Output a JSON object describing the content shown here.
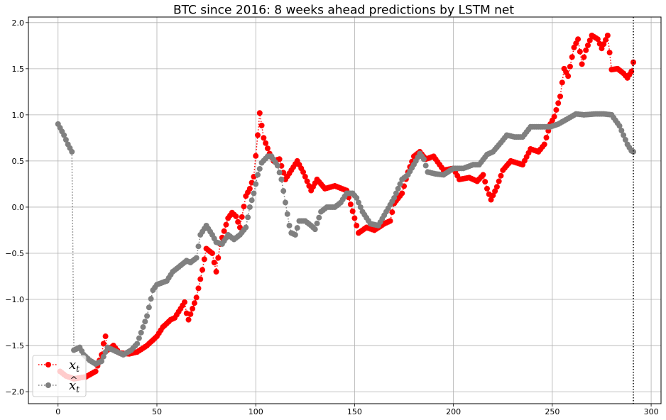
{
  "chart_data": {
    "type": "line",
    "title": "BTC since 2016: 8 weeks ahead predictions by LSTM net",
    "xlabel": "",
    "ylabel": "",
    "xlim": [
      -15,
      305
    ],
    "ylim": [
      -2.13,
      2.06
    ],
    "xticks": [
      0,
      50,
      100,
      150,
      200,
      250,
      300
    ],
    "xtick_labels": [
      "0",
      "50",
      "100",
      "150",
      "200",
      "250",
      "300"
    ],
    "yticks": [
      -2.0,
      -1.5,
      -1.0,
      -0.5,
      0.0,
      0.5,
      1.0,
      1.5,
      2.0
    ],
    "ytick_labels": [
      "−2.0",
      "−1.5",
      "−1.0",
      "−0.5",
      "0.0",
      "0.5",
      "1.0",
      "1.5",
      "2.0"
    ],
    "grid": true,
    "legend_position": "bottom-left",
    "vline": {
      "x": 291,
      "style": "dotted",
      "color": "#000000"
    },
    "series": [
      {
        "name": "x_t",
        "color": "#ff0000",
        "linestyle": "dotted",
        "marker": "circle",
        "knots": [
          [
            1,
            -1.78
          ],
          [
            4,
            -1.83
          ],
          [
            8,
            -1.86
          ],
          [
            14,
            -1.84
          ],
          [
            19,
            -1.78
          ],
          [
            22,
            -1.6
          ],
          [
            23,
            -1.48
          ],
          [
            24,
            -1.4
          ],
          [
            25,
            -1.55
          ],
          [
            28,
            -1.5
          ],
          [
            31,
            -1.58
          ],
          [
            36,
            -1.59
          ],
          [
            40,
            -1.57
          ],
          [
            45,
            -1.5
          ],
          [
            50,
            -1.4
          ],
          [
            53,
            -1.3
          ],
          [
            57,
            -1.22
          ],
          [
            59,
            -1.2
          ],
          [
            62,
            -1.1
          ],
          [
            64,
            -1.03
          ],
          [
            65,
            -1.15
          ],
          [
            66,
            -1.22
          ],
          [
            70,
            -0.98
          ],
          [
            73,
            -0.68
          ],
          [
            75,
            -0.45
          ],
          [
            78,
            -0.5
          ],
          [
            80,
            -0.7
          ],
          [
            82,
            -0.4
          ],
          [
            86,
            -0.12
          ],
          [
            88,
            -0.06
          ],
          [
            90,
            -0.1
          ],
          [
            92,
            -0.22
          ],
          [
            95,
            0.12
          ],
          [
            97,
            0.2
          ],
          [
            99,
            0.33
          ],
          [
            101,
            0.78
          ],
          [
            102,
            1.02
          ],
          [
            104,
            0.75
          ],
          [
            107,
            0.58
          ],
          [
            109,
            0.5
          ],
          [
            112,
            0.52
          ],
          [
            115,
            0.3
          ],
          [
            118,
            0.4
          ],
          [
            121,
            0.5
          ],
          [
            124,
            0.38
          ],
          [
            128,
            0.18
          ],
          [
            131,
            0.3
          ],
          [
            135,
            0.2
          ],
          [
            140,
            0.23
          ],
          [
            146,
            0.18
          ],
          [
            150,
            -0.12
          ],
          [
            152,
            -0.28
          ],
          [
            156,
            -0.22
          ],
          [
            160,
            -0.25
          ],
          [
            165,
            -0.18
          ],
          [
            168,
            -0.15
          ],
          [
            170,
            0.04
          ],
          [
            174,
            0.15
          ],
          [
            177,
            0.38
          ],
          [
            180,
            0.55
          ],
          [
            183,
            0.6
          ],
          [
            186,
            0.52
          ],
          [
            190,
            0.55
          ],
          [
            195,
            0.4
          ],
          [
            200,
            0.42
          ],
          [
            203,
            0.3
          ],
          [
            208,
            0.32
          ],
          [
            212,
            0.28
          ],
          [
            215,
            0.35
          ],
          [
            217,
            0.2
          ],
          [
            219,
            0.08
          ],
          [
            222,
            0.22
          ],
          [
            225,
            0.4
          ],
          [
            229,
            0.5
          ],
          [
            235,
            0.46
          ],
          [
            239,
            0.63
          ],
          [
            243,
            0.6
          ],
          [
            246,
            0.68
          ],
          [
            249,
            0.9
          ],
          [
            251,
            0.98
          ],
          [
            254,
            1.2
          ],
          [
            256,
            1.5
          ],
          [
            258,
            1.42
          ],
          [
            261,
            1.73
          ],
          [
            263,
            1.82
          ],
          [
            265,
            1.55
          ],
          [
            267,
            1.7
          ],
          [
            270,
            1.86
          ],
          [
            273,
            1.82
          ],
          [
            275,
            1.72
          ],
          [
            278,
            1.86
          ],
          [
            280,
            1.49
          ],
          [
            283,
            1.5
          ],
          [
            286,
            1.45
          ],
          [
            288,
            1.4
          ],
          [
            290,
            1.47
          ],
          [
            291,
            1.57
          ]
        ]
      },
      {
        "name": "x̂_t",
        "color": "#808080",
        "linestyle": "dotted",
        "marker": "circle",
        "knots": [
          [
            0,
            0.9
          ],
          [
            3,
            0.78
          ],
          [
            5,
            0.68
          ],
          [
            7,
            0.6
          ],
          [
            8,
            -1.55
          ],
          [
            11,
            -1.52
          ],
          [
            13,
            -1.6
          ],
          [
            16,
            -1.66
          ],
          [
            19,
            -1.7
          ],
          [
            22,
            -1.67
          ],
          [
            25,
            -1.52
          ],
          [
            30,
            -1.57
          ],
          [
            33,
            -1.6
          ],
          [
            37,
            -1.55
          ],
          [
            40,
            -1.48
          ],
          [
            43,
            -1.3
          ],
          [
            45,
            -1.18
          ],
          [
            48,
            -0.9
          ],
          [
            50,
            -0.84
          ],
          [
            55,
            -0.8
          ],
          [
            58,
            -0.7
          ],
          [
            61,
            -0.65
          ],
          [
            65,
            -0.58
          ],
          [
            67,
            -0.6
          ],
          [
            70,
            -0.55
          ],
          [
            72,
            -0.3
          ],
          [
            75,
            -0.2
          ],
          [
            78,
            -0.3
          ],
          [
            80,
            -0.38
          ],
          [
            83,
            -0.4
          ],
          [
            86,
            -0.3
          ],
          [
            89,
            -0.35
          ],
          [
            92,
            -0.3
          ],
          [
            95,
            -0.22
          ],
          [
            97,
            0.0
          ],
          [
            99,
            0.15
          ],
          [
            101,
            0.35
          ],
          [
            103,
            0.48
          ],
          [
            106,
            0.55
          ],
          [
            108,
            0.55
          ],
          [
            111,
            0.45
          ],
          [
            113,
            0.3
          ],
          [
            115,
            0.05
          ],
          [
            117,
            -0.2
          ],
          [
            118,
            -0.28
          ],
          [
            120,
            -0.3
          ],
          [
            122,
            -0.15
          ],
          [
            125,
            -0.15
          ],
          [
            128,
            -0.2
          ],
          [
            130,
            -0.24
          ],
          [
            133,
            -0.05
          ],
          [
            136,
            0.0
          ],
          [
            140,
            0.0
          ],
          [
            143,
            0.05
          ],
          [
            146,
            0.15
          ],
          [
            149,
            0.15
          ],
          [
            151,
            0.1
          ],
          [
            154,
            -0.05
          ],
          [
            158,
            -0.18
          ],
          [
            162,
            -0.2
          ],
          [
            166,
            -0.05
          ],
          [
            170,
            0.1
          ],
          [
            174,
            0.3
          ],
          [
            177,
            0.35
          ],
          [
            181,
            0.5
          ],
          [
            183,
            0.58
          ],
          [
            185,
            0.52
          ],
          [
            187,
            0.38
          ],
          [
            191,
            0.36
          ],
          [
            195,
            0.35
          ],
          [
            200,
            0.42
          ],
          [
            205,
            0.42
          ],
          [
            210,
            0.46
          ],
          [
            213,
            0.46
          ],
          [
            217,
            0.57
          ],
          [
            220,
            0.6
          ],
          [
            224,
            0.7
          ],
          [
            227,
            0.78
          ],
          [
            231,
            0.76
          ],
          [
            235,
            0.76
          ],
          [
            239,
            0.87
          ],
          [
            243,
            0.87
          ],
          [
            249,
            0.87
          ],
          [
            253,
            0.9
          ],
          [
            258,
            0.96
          ],
          [
            262,
            1.01
          ],
          [
            266,
            1.0
          ],
          [
            272,
            1.01
          ],
          [
            276,
            1.01
          ],
          [
            280,
            1.0
          ],
          [
            284,
            0.88
          ],
          [
            286,
            0.78
          ],
          [
            288,
            0.68
          ],
          [
            290,
            0.61
          ],
          [
            291,
            0.6
          ]
        ]
      }
    ],
    "legend_entries": [
      {
        "name": "x_t",
        "label_text": "x",
        "label_sub": "t",
        "label_hat": ""
      },
      {
        "name": "x̂_t",
        "label_text": "x",
        "label_sub": "t",
        "label_hat": "^"
      }
    ]
  }
}
